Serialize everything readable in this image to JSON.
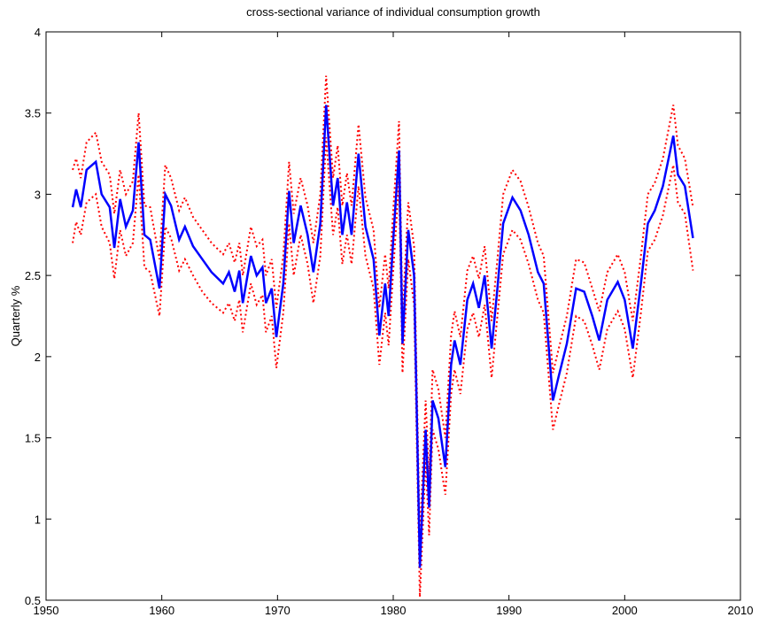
{
  "chart_data": {
    "type": "line",
    "title": "cross-sectional variance of individual consumption growth",
    "ylabel": "Quarterly %",
    "x": [
      1952.3,
      1952.6,
      1953.0,
      1953.5,
      1954.3,
      1954.8,
      1955.5,
      1955.9,
      1956.4,
      1956.9,
      1957.5,
      1958.0,
      1958.5,
      1959.0,
      1959.8,
      1960.3,
      1960.8,
      1961.5,
      1962.0,
      1962.7,
      1963.5,
      1964.3,
      1965.3,
      1965.8,
      1966.3,
      1966.7,
      1967.0,
      1967.7,
      1968.2,
      1968.7,
      1969.0,
      1969.5,
      1969.9,
      1970.5,
      1971.0,
      1971.4,
      1972.0,
      1972.6,
      1973.1,
      1973.7,
      1974.2,
      1974.8,
      1975.2,
      1975.6,
      1976.0,
      1976.4,
      1977.0,
      1977.6,
      1978.3,
      1978.8,
      1979.3,
      1979.6,
      1980.0,
      1980.5,
      1980.8,
      1981.3,
      1981.8,
      1982.3,
      1982.8,
      1983.1,
      1983.4,
      1983.9,
      1984.5,
      1985.0,
      1985.3,
      1985.8,
      1986.4,
      1986.9,
      1987.4,
      1987.9,
      1988.5,
      1989.0,
      1989.5,
      1990.3,
      1991.0,
      1991.7,
      1992.5,
      1993.0,
      1993.8,
      1994.3,
      1995.0,
      1995.8,
      1996.5,
      1997.2,
      1997.8,
      1998.5,
      1999.4,
      2000.0,
      2000.7,
      2001.4,
      2002.0,
      2002.6,
      2003.3,
      2004.2,
      2004.6,
      2005.2,
      2005.9
    ],
    "series": [
      {
        "color": "#ff0000",
        "style": "dotted",
        "values": [
          3.15,
          3.22,
          3.1,
          3.32,
          3.38,
          3.2,
          3.12,
          2.88,
          3.15,
          3.0,
          3.08,
          3.5,
          2.93,
          2.92,
          2.6,
          3.18,
          3.1,
          2.9,
          2.98,
          2.86,
          2.78,
          2.7,
          2.63,
          2.7,
          2.58,
          2.7,
          2.5,
          2.8,
          2.68,
          2.72,
          2.5,
          2.6,
          2.3,
          2.62,
          3.2,
          2.88,
          3.1,
          2.93,
          2.7,
          3.0,
          3.73,
          3.1,
          3.3,
          2.93,
          3.13,
          2.93,
          3.43,
          2.98,
          2.78,
          2.3,
          2.63,
          2.42,
          2.9,
          3.45,
          2.25,
          2.95,
          2.68,
          0.88,
          1.73,
          1.25,
          1.92,
          1.8,
          1.5,
          2.13,
          2.28,
          2.12,
          2.53,
          2.62,
          2.48,
          2.68,
          2.22,
          2.6,
          3.0,
          3.15,
          3.08,
          2.92,
          2.7,
          2.62,
          1.9,
          2.05,
          2.25,
          2.6,
          2.58,
          2.42,
          2.28,
          2.52,
          2.63,
          2.52,
          2.22,
          2.62,
          3.0,
          3.07,
          3.22,
          3.55,
          3.3,
          3.22,
          2.92
        ]
      },
      {
        "color": "#ff0000",
        "style": "dotted",
        "values": [
          2.7,
          2.83,
          2.75,
          2.95,
          3.0,
          2.8,
          2.7,
          2.48,
          2.78,
          2.62,
          2.7,
          3.12,
          2.55,
          2.52,
          2.25,
          2.8,
          2.73,
          2.53,
          2.6,
          2.5,
          2.4,
          2.33,
          2.27,
          2.33,
          2.22,
          2.35,
          2.15,
          2.45,
          2.32,
          2.38,
          2.15,
          2.25,
          1.93,
          2.27,
          2.82,
          2.5,
          2.75,
          2.57,
          2.33,
          2.62,
          3.35,
          2.75,
          2.92,
          2.57,
          2.75,
          2.57,
          3.05,
          2.62,
          2.42,
          1.95,
          2.27,
          2.07,
          2.53,
          3.08,
          1.9,
          2.6,
          2.32,
          0.52,
          1.37,
          0.9,
          1.55,
          1.43,
          1.15,
          1.77,
          1.92,
          1.77,
          2.17,
          2.27,
          2.12,
          2.32,
          1.87,
          2.25,
          2.63,
          2.78,
          2.72,
          2.57,
          2.35,
          2.27,
          1.55,
          1.7,
          1.9,
          2.25,
          2.22,
          2.07,
          1.92,
          2.17,
          2.28,
          2.17,
          1.87,
          2.27,
          2.65,
          2.72,
          2.87,
          3.18,
          2.95,
          2.88,
          2.53
        ]
      },
      {
        "color": "#0000ff",
        "style": "solid",
        "values": [
          2.92,
          3.03,
          2.92,
          3.15,
          3.2,
          3.0,
          2.92,
          2.67,
          2.97,
          2.8,
          2.9,
          3.32,
          2.75,
          2.72,
          2.42,
          3.0,
          2.93,
          2.72,
          2.8,
          2.68,
          2.6,
          2.52,
          2.45,
          2.52,
          2.4,
          2.53,
          2.33,
          2.62,
          2.5,
          2.55,
          2.33,
          2.42,
          2.12,
          2.45,
          3.02,
          2.7,
          2.93,
          2.75,
          2.52,
          2.82,
          3.55,
          2.93,
          3.1,
          2.75,
          2.95,
          2.75,
          3.25,
          2.8,
          2.6,
          2.13,
          2.45,
          2.25,
          2.72,
          3.27,
          2.08,
          2.78,
          2.5,
          0.7,
          1.55,
          1.07,
          1.73,
          1.62,
          1.32,
          1.95,
          2.1,
          1.95,
          2.35,
          2.45,
          2.3,
          2.5,
          2.05,
          2.42,
          2.82,
          2.98,
          2.9,
          2.75,
          2.52,
          2.45,
          1.73,
          1.88,
          2.08,
          2.42,
          2.4,
          2.25,
          2.1,
          2.35,
          2.46,
          2.35,
          2.05,
          2.45,
          2.82,
          2.9,
          3.05,
          3.36,
          3.12,
          3.05,
          2.73
        ]
      }
    ],
    "xlim": [
      1950,
      2010
    ],
    "xticks": [
      1950,
      1960,
      1970,
      1980,
      1990,
      2000,
      2010
    ],
    "ylim": [
      0.5,
      4
    ],
    "yticks": [
      0.5,
      1,
      1.5,
      2,
      2.5,
      3,
      3.5,
      4
    ],
    "grid": false
  }
}
